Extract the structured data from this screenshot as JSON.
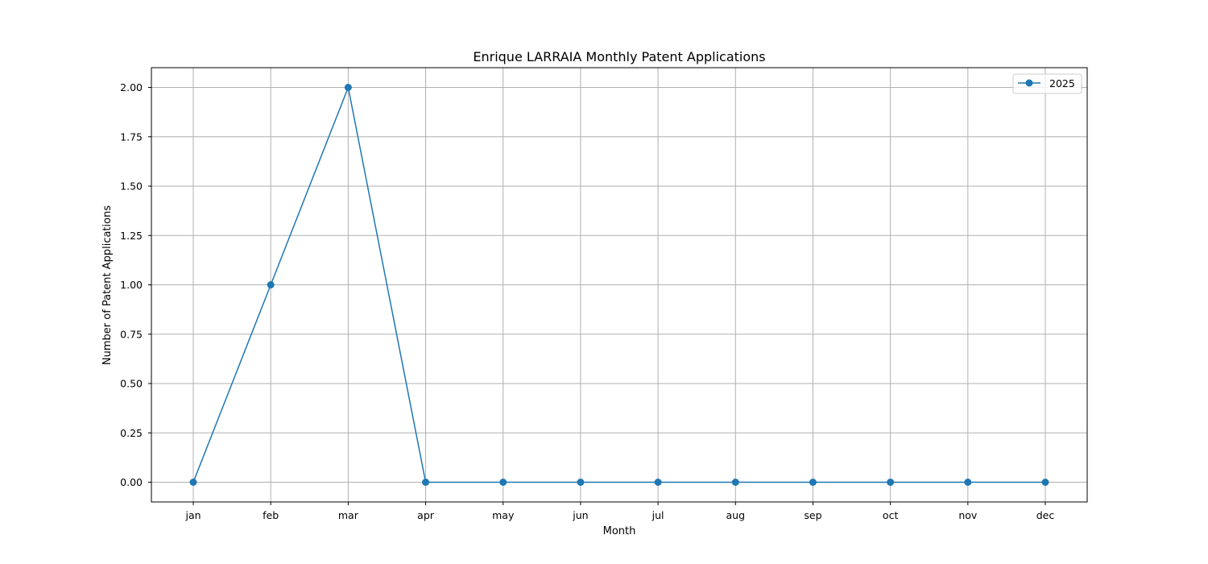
{
  "chart_data": {
    "type": "line",
    "title": "Enrique LARRAIA Monthly Patent Applications",
    "xlabel": "Month",
    "ylabel": "Number of Patent Applications",
    "categories": [
      "jan",
      "feb",
      "mar",
      "apr",
      "may",
      "jun",
      "jul",
      "aug",
      "sep",
      "oct",
      "nov",
      "dec"
    ],
    "series": [
      {
        "name": "2025",
        "values": [
          0,
          1,
          2,
          0,
          0,
          0,
          0,
          0,
          0,
          0,
          0,
          0
        ],
        "color": "#1f77b4",
        "marker": "circle"
      }
    ],
    "ylim": [
      -0.1,
      2.1
    ],
    "yticks": [
      0.0,
      0.25,
      0.5,
      0.75,
      1.0,
      1.25,
      1.5,
      1.75,
      2.0
    ],
    "ytick_labels": [
      "0.00",
      "0.25",
      "0.50",
      "0.75",
      "1.00",
      "1.25",
      "1.50",
      "1.75",
      "2.00"
    ],
    "grid": true,
    "legend_position": "top-right"
  }
}
